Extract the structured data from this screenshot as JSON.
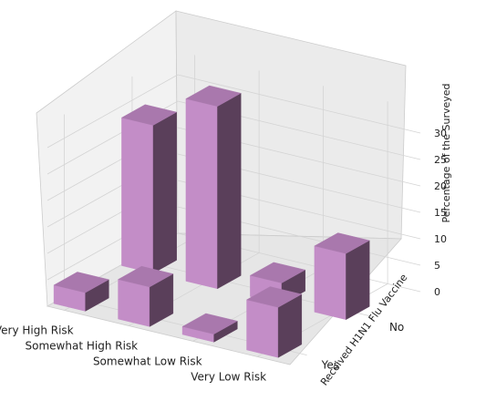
{
  "chart_data": {
    "type": "bar",
    "variant": "3d",
    "categories": [
      "Very High Risk",
      "Somewhat High Risk",
      "Somewhat Low Risk",
      "Very Low Risk"
    ],
    "y_categories": [
      "Yes",
      "No"
    ],
    "series": [
      {
        "name": "Yes",
        "values": [
          3.5,
          7.5,
          1.5,
          9.5
        ]
      },
      {
        "name": "No",
        "values": [
          28,
          34.5,
          4,
          12.5
        ]
      }
    ],
    "xlabel": "",
    "ylabel": "Received H1N1 Flu Vaccine",
    "zlabel": "Percentage of the Surveyed",
    "zticks": [
      0,
      5,
      10,
      15,
      20,
      25,
      30
    ],
    "zlim": [
      0,
      34.5
    ],
    "bar_color": "#c38dc7",
    "grid": true
  }
}
